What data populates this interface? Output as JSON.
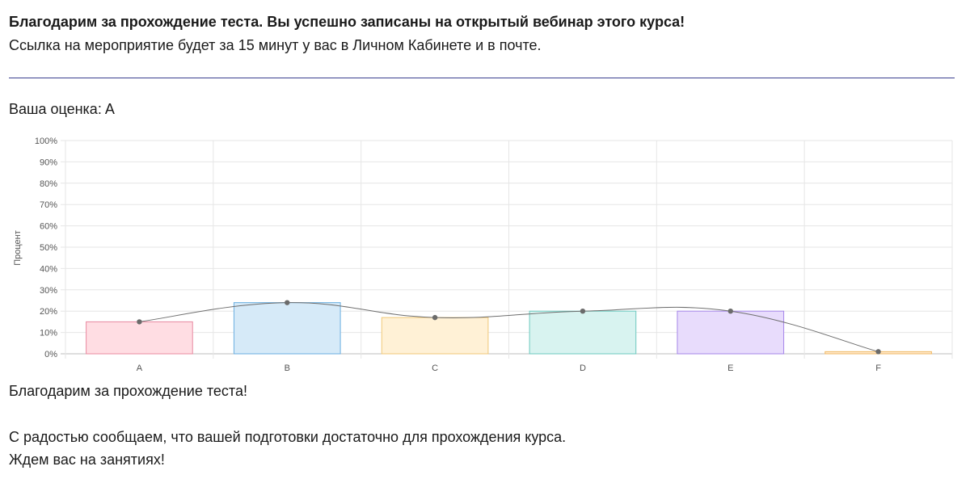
{
  "header": {
    "headline": "Благодарим за прохождение теста. Вы успешно записаны на открытый вебинар этого курса!",
    "subline": "Ссылка на мероприятие будет за 15 минут у вас в Личном Кабинете и в почте."
  },
  "result": {
    "label": "Ваша оценка:",
    "value": "A"
  },
  "footer": {
    "thanks": "Благодарим за прохождение теста!",
    "message": "С радостью сообщаем, что вашей подготовки достаточно для прохождения курса.",
    "closing": "Ждем вас на занятиях!"
  },
  "chart_data": {
    "type": "bar",
    "categories": [
      "A",
      "B",
      "C",
      "D",
      "E",
      "F"
    ],
    "values": [
      15,
      24,
      17,
      20,
      20,
      1
    ],
    "line_overlay": true,
    "ylabel": "Процент",
    "ylim": [
      0,
      100
    ],
    "yticks": [
      "0%",
      "10%",
      "20%",
      "30%",
      "40%",
      "50%",
      "60%",
      "70%",
      "80%",
      "90%",
      "100%"
    ],
    "grid": true,
    "bar_fill_colors": [
      "#ffdde3",
      "#d6eaf8",
      "#fff1d6",
      "#d8f3f0",
      "#e8dcfc",
      "#ffe9cc"
    ],
    "bar_stroke_colors": [
      "#e88aa0",
      "#6aaee0",
      "#f0c878",
      "#6cc9bf",
      "#a586e8",
      "#f0b860"
    ],
    "line_color": "#6e6e6e",
    "point_color": "#6b6b6b"
  }
}
